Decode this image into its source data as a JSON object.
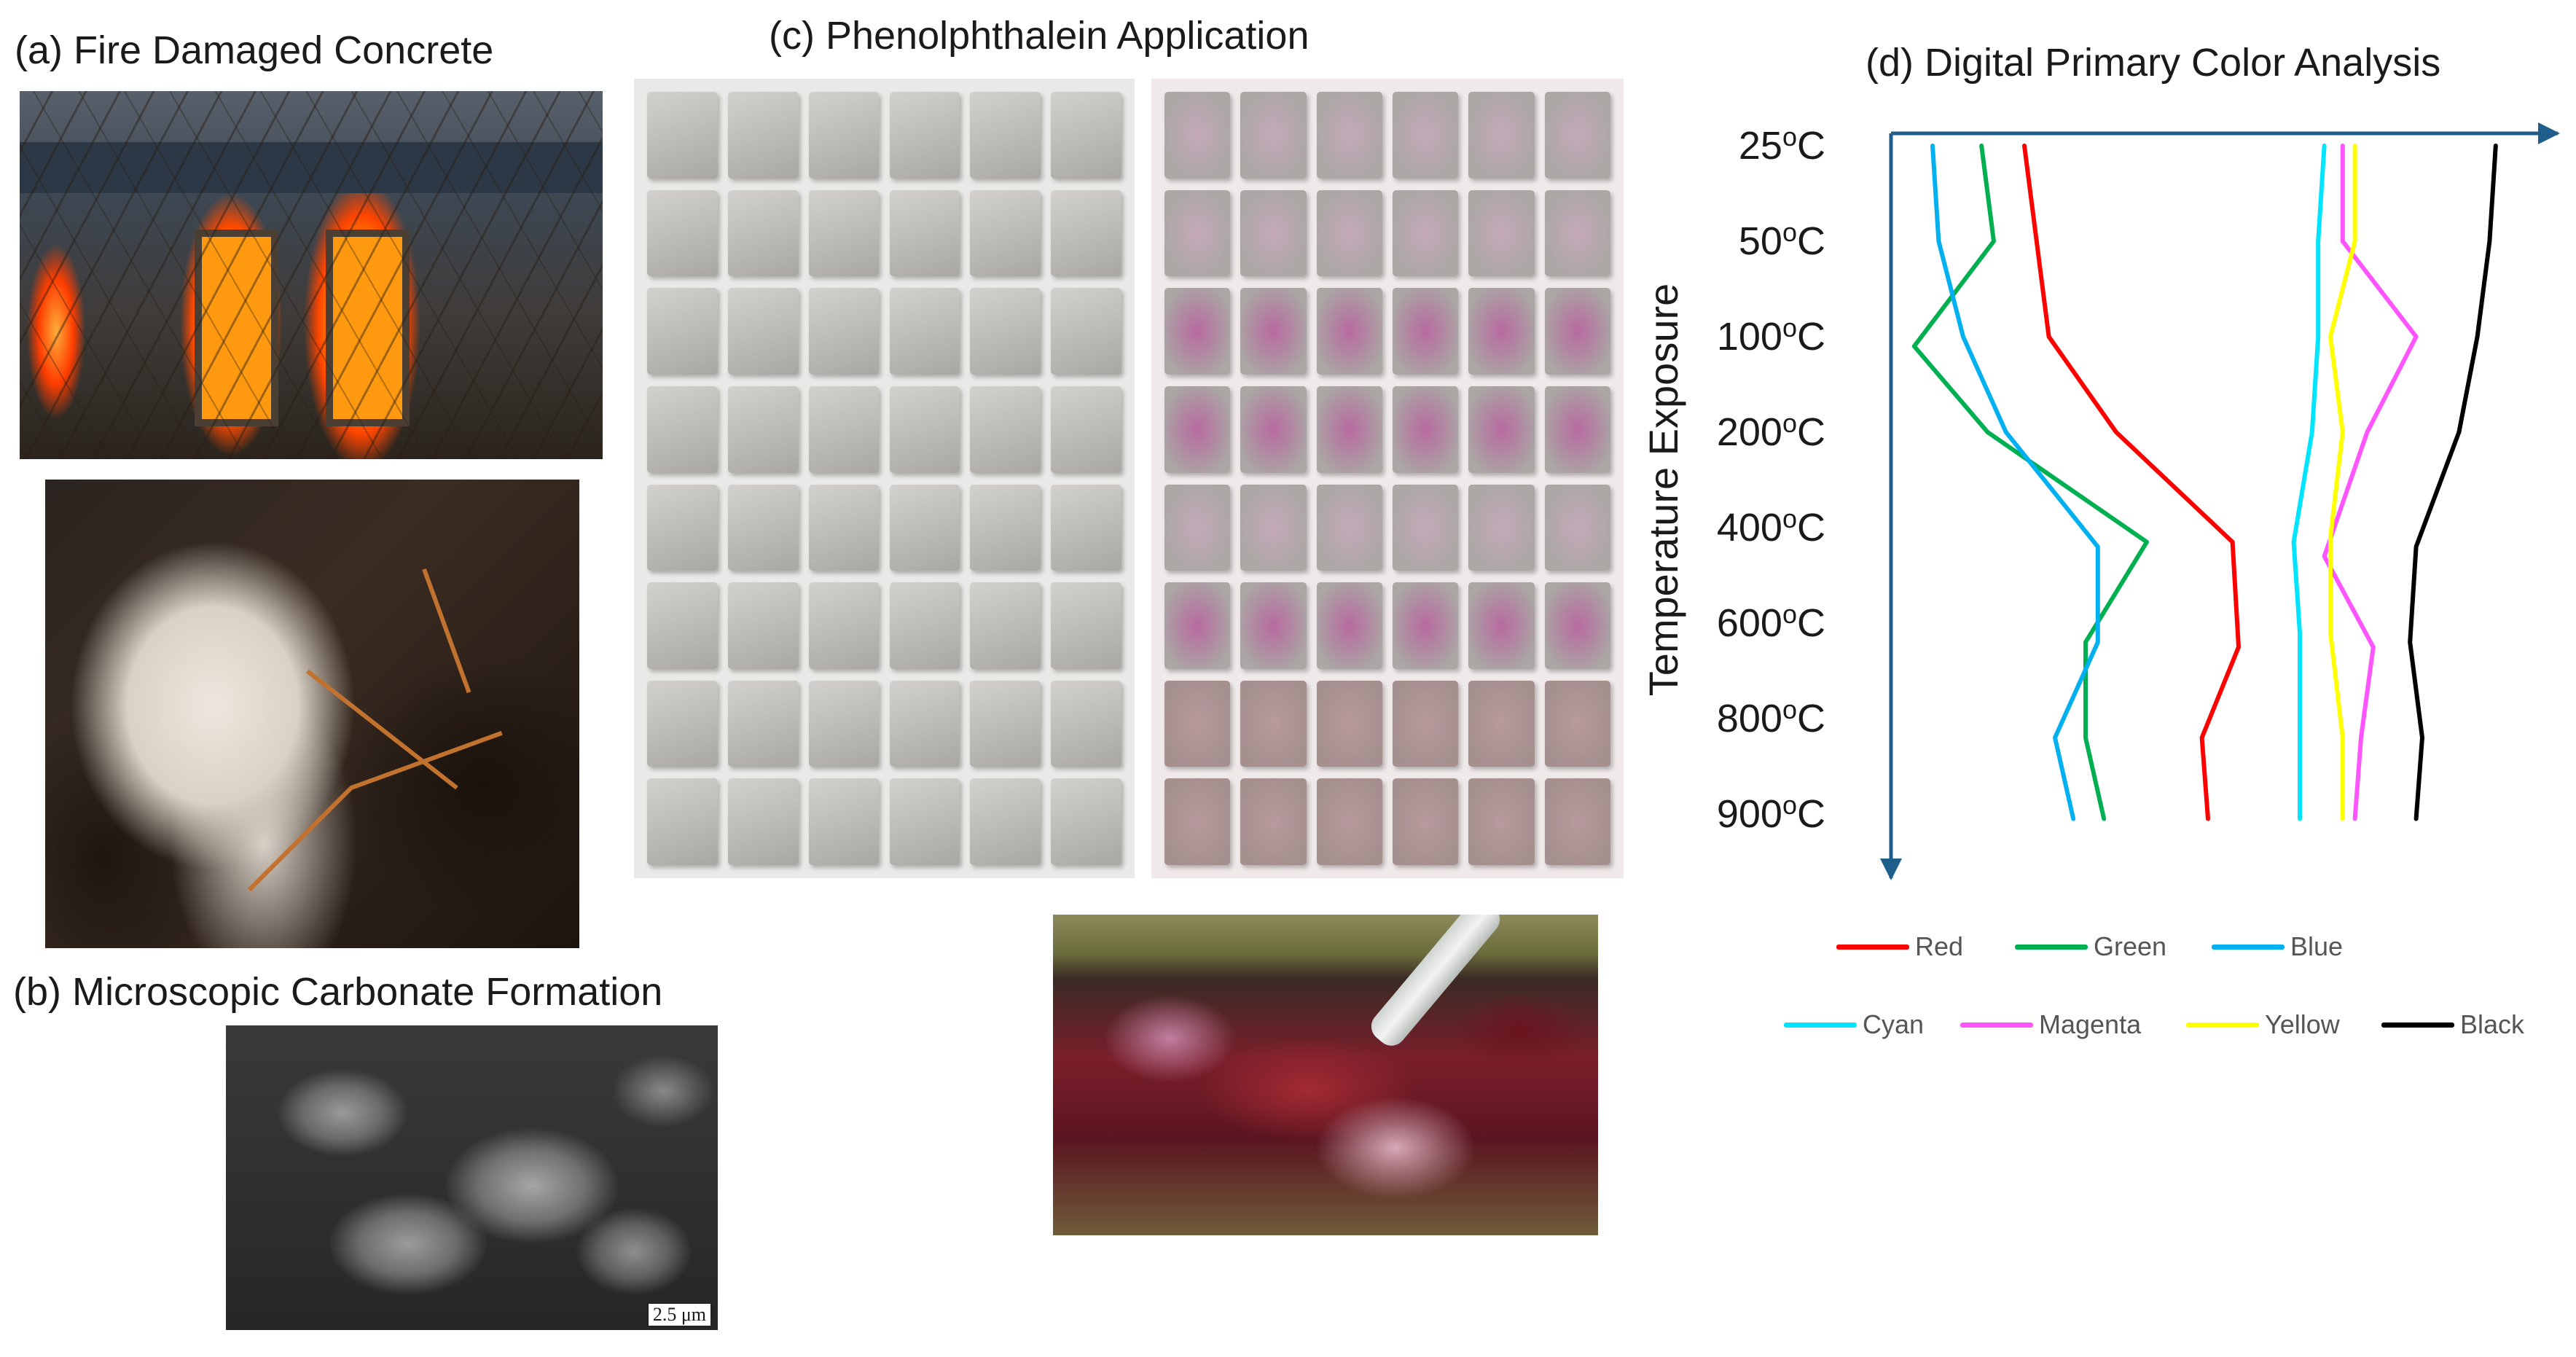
{
  "panels": {
    "a": {
      "title": "(a) Fire Damaged Concrete"
    },
    "b": {
      "title": "(b) Microscopic Carbonate Formation",
      "scale_bar": "2.5 μm"
    },
    "c": {
      "title": "(c) Phenolphthalein Application"
    },
    "d": {
      "title": "(d) Digital Primary Color Analysis"
    }
  },
  "chart_data": {
    "type": "line",
    "title": "(d) Digital Primary Color Analysis",
    "ylabel": "Temperature Exposure",
    "xlabel": "",
    "categories": [
      "25°C",
      "50°C",
      "100°C",
      "200°C",
      "400°C",
      "600°C",
      "800°C",
      "900°C"
    ],
    "category_labels": [
      {
        "num": "25",
        "sup": "o",
        "unit": "C"
      },
      {
        "num": "50",
        "sup": "o",
        "unit": "C"
      },
      {
        "num": "100",
        "sup": "o",
        "unit": "C"
      },
      {
        "num": "200",
        "sup": "o",
        "unit": "C"
      },
      {
        "num": "400",
        "sup": "o",
        "unit": "C"
      },
      {
        "num": "600",
        "sup": "o",
        "unit": "C"
      },
      {
        "num": "800",
        "sup": "o",
        "unit": "C"
      },
      {
        "num": "900",
        "sup": "o",
        "unit": "C"
      }
    ],
    "y_inverted": true,
    "legend_placement": "bottom",
    "grid": false,
    "series": [
      {
        "name": "Red",
        "color": "#ff0000",
        "values": [
          [
            0.2,
            0.0
          ],
          [
            0.22,
            1.0
          ],
          [
            0.24,
            2.0
          ],
          [
            0.35,
            3.0
          ],
          [
            0.54,
            4.15
          ],
          [
            0.55,
            5.25
          ],
          [
            0.49,
            6.2
          ],
          [
            0.5,
            7.05
          ]
        ]
      },
      {
        "name": "Green",
        "color": "#00b050",
        "values": [
          [
            0.13,
            0.0
          ],
          [
            0.15,
            1.0
          ],
          [
            0.02,
            2.1
          ],
          [
            0.14,
            3.0
          ],
          [
            0.4,
            4.15
          ],
          [
            0.3,
            5.2
          ],
          [
            0.3,
            6.2
          ],
          [
            0.33,
            7.05
          ]
        ]
      },
      {
        "name": "Blue",
        "color": "#00b0f0",
        "values": [
          [
            0.05,
            0.0
          ],
          [
            0.06,
            1.0
          ],
          [
            0.1,
            2.0
          ],
          [
            0.17,
            3.0
          ],
          [
            0.32,
            4.2
          ],
          [
            0.32,
            5.2
          ],
          [
            0.25,
            6.2
          ],
          [
            0.28,
            7.05
          ]
        ]
      },
      {
        "name": "Cyan",
        "color": "#00e5ff",
        "values": [
          [
            0.69,
            0.0
          ],
          [
            0.68,
            1.0
          ],
          [
            0.68,
            2.0
          ],
          [
            0.67,
            3.0
          ],
          [
            0.64,
            4.15
          ],
          [
            0.65,
            5.1
          ],
          [
            0.65,
            6.2
          ],
          [
            0.65,
            7.05
          ]
        ]
      },
      {
        "name": "Magenta",
        "color": "#ff55ff",
        "values": [
          [
            0.72,
            0.0
          ],
          [
            0.72,
            1.0
          ],
          [
            0.84,
            2.0
          ],
          [
            0.76,
            3.0
          ],
          [
            0.69,
            4.3
          ],
          [
            0.77,
            5.25
          ],
          [
            0.75,
            6.2
          ],
          [
            0.74,
            7.05
          ]
        ]
      },
      {
        "name": "Yellow",
        "color": "#ffff00",
        "values": [
          [
            0.74,
            0.0
          ],
          [
            0.74,
            1.0
          ],
          [
            0.7,
            2.0
          ],
          [
            0.72,
            3.0
          ],
          [
            0.7,
            4.1
          ],
          [
            0.7,
            5.1
          ],
          [
            0.72,
            6.2
          ],
          [
            0.72,
            7.05
          ]
        ]
      },
      {
        "name": "Black",
        "color": "#000000",
        "values": [
          [
            0.97,
            0.0
          ],
          [
            0.96,
            1.0
          ],
          [
            0.94,
            2.0
          ],
          [
            0.91,
            3.0
          ],
          [
            0.84,
            4.2
          ],
          [
            0.83,
            5.2
          ],
          [
            0.85,
            6.2
          ],
          [
            0.84,
            7.05
          ]
        ]
      }
    ]
  }
}
